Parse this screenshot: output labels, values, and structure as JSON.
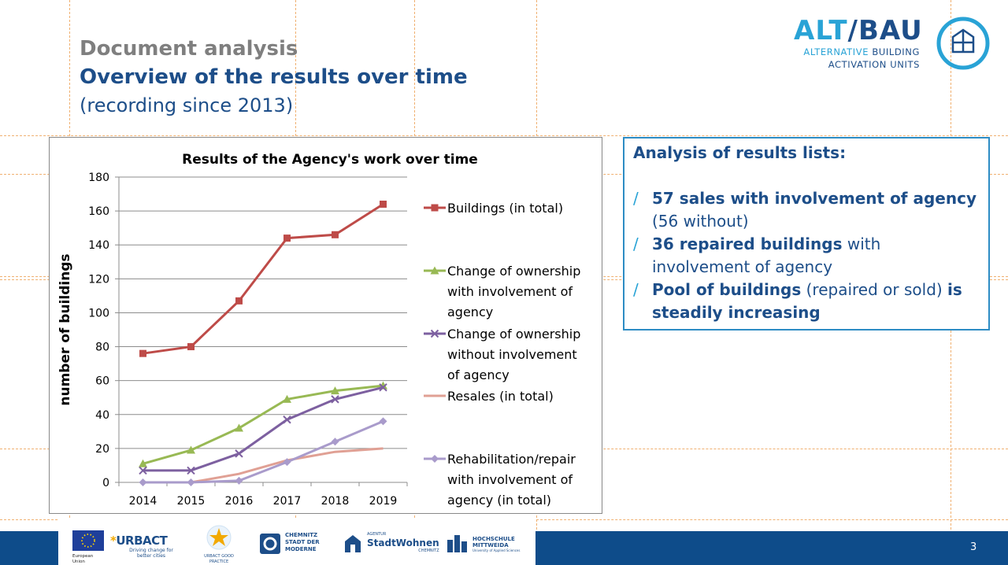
{
  "heading": {
    "pre_title": "Document analysis",
    "title": "Overview of the results over time",
    "subtitle": "(recording since 2013)"
  },
  "brand": {
    "name_part1": "ALT",
    "slash": "/",
    "name_part2": "BAU",
    "tagline_line1_a": "ALTERNATIVE",
    "tagline_line1_b": " BUILDING",
    "tagline_line2": "ACTIVATION UNITS"
  },
  "panel": {
    "title": "Analysis of results lists:",
    "bullet_mark": "/",
    "bullets": [
      {
        "bold": "57 sales with involvement of agency",
        "rest": " (56 without)",
        "bold2": ""
      },
      {
        "bold": "36 repaired buildings",
        "rest": " with involvement of agency",
        "bold2": ""
      },
      {
        "bold": "Pool of buildings",
        "rest": " (repaired or sold) ",
        "bold2": "is steadily increasing"
      }
    ]
  },
  "footer": {
    "page_number": "3",
    "logos": {
      "eu": "European Union",
      "urbact": "URBACT",
      "urbact_tagline": "Driving change for better cities",
      "urbact_gp": "URBACT GOOD PRACTICE",
      "chemnitz_1": "CHEMNITZ",
      "chemnitz_2": "STADT DER",
      "chemnitz_3": "MODERNE",
      "stadtwohnen_1": "AGENTUR",
      "stadtwohnen_2": "StadtWohnen",
      "stadtwohnen_3": "CHEMNITZ",
      "hs_1": "HOCHSCHULE",
      "hs_2": "MITTWEIDA",
      "hs_3": "University of Applied Sciences"
    }
  },
  "colors": {
    "buildings": "#be4b48",
    "ownership_with": "#98b954",
    "ownership_without": "#7d60a0",
    "resales": "#e0a094",
    "rehab": "#a99bcb",
    "title_blue": "#1d4e89",
    "accent_blue": "#29a3d6"
  },
  "chart_data": {
    "type": "line",
    "title": "Results of the Agency's work over time",
    "xlabel": "",
    "ylabel": "number of buildings",
    "categories": [
      "2014",
      "2015",
      "2016",
      "2017",
      "2018",
      "2019"
    ],
    "ylim": [
      0,
      180
    ],
    "yticks": [
      0,
      20,
      40,
      60,
      80,
      100,
      120,
      140,
      160,
      180
    ],
    "grid": true,
    "legend_position": "right",
    "series": [
      {
        "name": "Buildings (in total)",
        "legend_lines": [
          "Buildings (in total)"
        ],
        "color": "#be4b48",
        "marker": "square",
        "values": [
          76,
          80,
          107,
          144,
          146,
          164
        ]
      },
      {
        "name": "Change of ownership with involvement of agency",
        "legend_lines": [
          "Change of ownership",
          "with involvement of",
          "agency"
        ],
        "color": "#98b954",
        "marker": "triangle",
        "values": [
          11,
          19,
          32,
          49,
          54,
          57
        ]
      },
      {
        "name": "Change of ownership without involvement of agency",
        "legend_lines": [
          "Change of ownership",
          "without involvement",
          "of agency"
        ],
        "color": "#7d60a0",
        "marker": "x",
        "values": [
          7,
          7,
          17,
          37,
          49,
          56
        ]
      },
      {
        "name": "Resales (in total)",
        "legend_lines": [
          "Resales (in total)"
        ],
        "color": "#e0a094",
        "marker": "none",
        "values": [
          0,
          0,
          5,
          13,
          18,
          20
        ]
      },
      {
        "name": "Rehabilitation/repair with involvement of agency (in total)",
        "legend_lines": [
          "Rehabilitation/repair",
          "with involvement of",
          "agency (in total)"
        ],
        "color": "#a99bcb",
        "marker": "diamond",
        "values": [
          0,
          0,
          1,
          12,
          24,
          36
        ]
      }
    ]
  }
}
